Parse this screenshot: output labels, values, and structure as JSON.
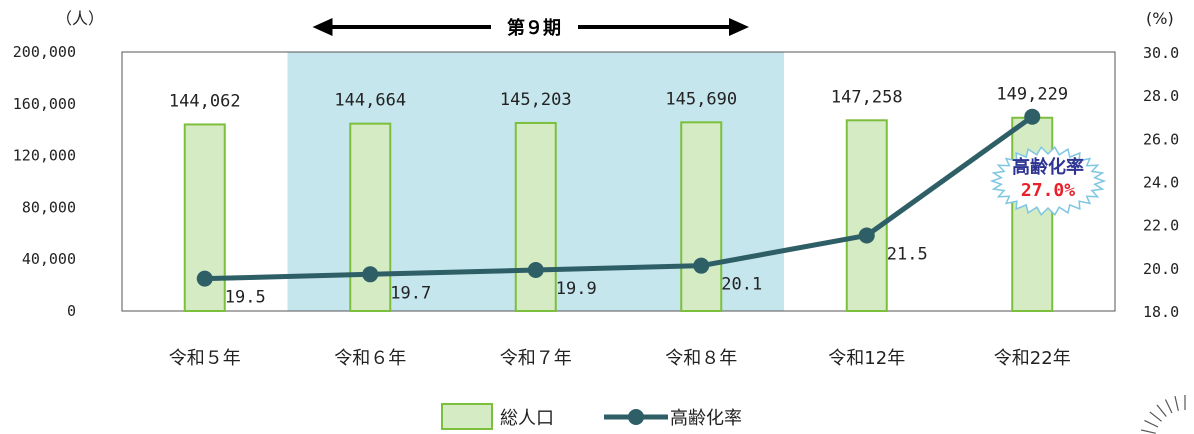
{
  "chart_data": {
    "type": "bar+line",
    "categories": [
      "令和５年",
      "令和６年",
      "令和７年",
      "令和８年",
      "令和12年",
      "令和22年"
    ],
    "series": [
      {
        "name": "総人口",
        "type": "bar",
        "axis": "left",
        "values": [
          144062,
          144664,
          145203,
          145690,
          147258,
          149229
        ],
        "labels": [
          "144,062",
          "144,664",
          "145,203",
          "145,690",
          "147,258",
          "149,229"
        ],
        "color": "#d5ebc4",
        "stroke": "#7cbf3c"
      },
      {
        "name": "高齢化率",
        "type": "line",
        "axis": "right",
        "values": [
          19.5,
          19.7,
          19.9,
          20.1,
          21.5,
          27.0
        ],
        "labels": [
          "19.5",
          "19.7",
          "19.9",
          "20.1",
          "21.5",
          ""
        ],
        "color": "#2e5e66"
      }
    ],
    "left_axis": {
      "unit": "（人）",
      "ylim": [
        0,
        200000
      ],
      "ticks": [
        0,
        40000,
        80000,
        120000,
        160000,
        200000
      ],
      "tick_labels": [
        "0",
        "40,000",
        "80,000",
        "120,000",
        "160,000",
        "200,000"
      ]
    },
    "right_axis": {
      "unit": "(%)",
      "ylim": [
        18,
        30
      ],
      "ticks": [
        18,
        20,
        22,
        24,
        26,
        28,
        30
      ],
      "tick_labels": [
        "18.0",
        "20.0",
        "22.0",
        "24.0",
        "26.0",
        "28.0",
        "30.0"
      ]
    },
    "highlight": {
      "label": "第９期",
      "from_index": 1,
      "to_index": 3,
      "color": "#c6e6ee"
    },
    "callout": {
      "line1": "高齢化率",
      "line2": "27.0%",
      "line1_color": "#2d3391",
      "line2_color": "#e8202a"
    },
    "legend": {
      "position": "bottom",
      "items": [
        {
          "label": "総人口",
          "kind": "bar"
        },
        {
          "label": "高齢化率",
          "kind": "line"
        }
      ]
    },
    "grid": false
  }
}
